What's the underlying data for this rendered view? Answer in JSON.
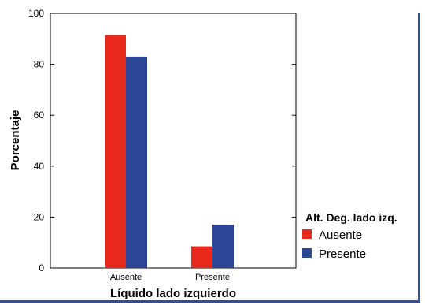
{
  "chart_data": {
    "type": "bar",
    "categories": [
      "Ausente",
      "Presente"
    ],
    "series": [
      {
        "name": "Ausente",
        "color": "#e8291c",
        "values": [
          91.5,
          8.5
        ]
      },
      {
        "name": "Presente",
        "color": "#2d4798",
        "values": [
          83,
          17
        ]
      }
    ],
    "xlabel": "Líquido lado izquierdo",
    "ylabel": "Porcentaje",
    "ylim": [
      0,
      100
    ],
    "yticks": [
      0,
      20,
      40,
      60,
      80,
      100
    ],
    "legend_title": "Alt. Deg. lado izq.",
    "legend_position": "right",
    "grid": false
  }
}
